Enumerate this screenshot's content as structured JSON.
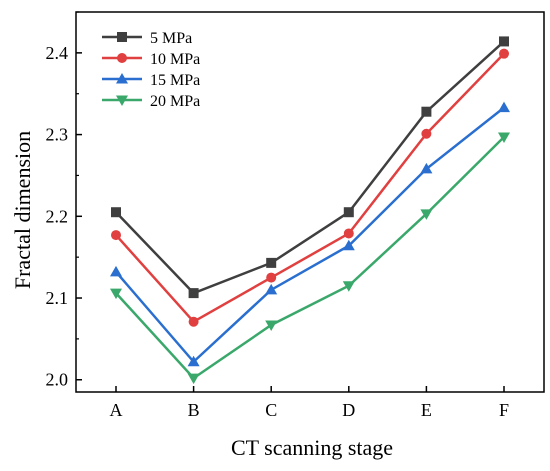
{
  "chart_data": {
    "type": "line",
    "categories": [
      "A",
      "B",
      "C",
      "D",
      "E",
      "F"
    ],
    "series": [
      {
        "name": "5 MPa",
        "color": "#3f3f3f",
        "marker": "square",
        "values": [
          2.205,
          2.106,
          2.143,
          2.205,
          2.328,
          2.414
        ]
      },
      {
        "name": "10 MPa",
        "color": "#e0403f",
        "marker": "circle",
        "values": [
          2.177,
          2.071,
          2.125,
          2.179,
          2.301,
          2.399
        ]
      },
      {
        "name": "15 MPa",
        "color": "#2a6fcf",
        "marker": "triangle-up",
        "values": [
          2.132,
          2.022,
          2.11,
          2.164,
          2.258,
          2.333
        ]
      },
      {
        "name": "20 MPa",
        "color": "#3aa86a",
        "marker": "triangle-down",
        "values": [
          2.106,
          2.002,
          2.067,
          2.115,
          2.203,
          2.297
        ]
      }
    ],
    "xlabel": "CT scanning stage",
    "ylabel": "Fractal dimension",
    "ylim": [
      1.985,
      2.45
    ],
    "yticks": [
      2.0,
      2.1,
      2.2,
      2.3,
      2.4
    ],
    "ytick_labels": [
      "2.0",
      "2.1",
      "2.2",
      "2.3",
      "2.4"
    ],
    "grid": false,
    "legend_position": "top-left"
  }
}
